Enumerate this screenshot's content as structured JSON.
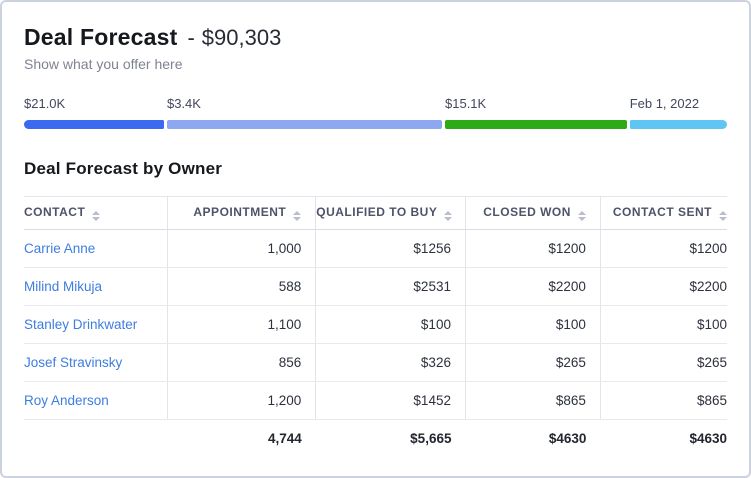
{
  "header": {
    "title": "Deal Forecast",
    "dash": "-",
    "amount": "$90,303",
    "subtitle": "Show what you offer here"
  },
  "forecast_bar": {
    "segments": [
      {
        "label": "$21.0K",
        "color": "#3b6af2",
        "width_ratio": 141
      },
      {
        "label": "$3.4K",
        "color": "#8ca8f0",
        "width_ratio": 277
      },
      {
        "label": "$15.1K",
        "color": "#2faa17",
        "width_ratio": 183
      },
      {
        "label": "Feb 1, 2022",
        "color": "#5fc6f3",
        "width_ratio": 98
      }
    ]
  },
  "table": {
    "title": "Deal Forecast by Owner",
    "columns": [
      {
        "label": "CONTACT"
      },
      {
        "label": "APPOINTMENT"
      },
      {
        "label": "QUALIFIED TO BUY"
      },
      {
        "label": "CLOSED WON"
      },
      {
        "label": "CONTACT SENT"
      }
    ],
    "rows": [
      {
        "contact": "Carrie Anne",
        "appointment": "1,000",
        "qualified_to_buy": "$1256",
        "closed_won": "$1200",
        "contact_sent": "$1200"
      },
      {
        "contact": "Milind Mikuja",
        "appointment": "588",
        "qualified_to_buy": "$2531",
        "closed_won": "$2200",
        "contact_sent": "$2200"
      },
      {
        "contact": "Stanley Drinkwater",
        "appointment": "1,100",
        "qualified_to_buy": "$100",
        "closed_won": "$100",
        "contact_sent": "$100"
      },
      {
        "contact": "Josef Stravinsky",
        "appointment": "856",
        "qualified_to_buy": "$326",
        "closed_won": "$265",
        "contact_sent": "$265"
      },
      {
        "contact": "Roy Anderson",
        "appointment": "1,200",
        "qualified_to_buy": "$1452",
        "closed_won": "$865",
        "contact_sent": "$865"
      }
    ],
    "totals": {
      "appointment": "4,744",
      "qualified_to_buy": "$5,665",
      "closed_won": "$4630",
      "contact_sent": "$4630"
    }
  }
}
